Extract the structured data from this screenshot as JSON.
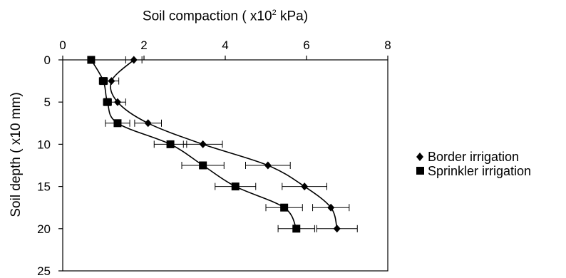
{
  "chart_data": {
    "type": "scatter",
    "xlabel_prefix": "Soil compaction ( x10",
    "xlabel_sup": "2",
    "xlabel_suffix": " kPa)",
    "ylabel": "Soil depth ( x10 mm)",
    "xlim": [
      0,
      8
    ],
    "ylim": [
      0,
      25
    ],
    "y_inverted": true,
    "x_axis_position": "top",
    "xticks": [
      "0",
      "2",
      "4",
      "6",
      "8"
    ],
    "yticks": [
      "0",
      "5",
      "10",
      "15",
      "20",
      "25"
    ],
    "grid": false,
    "legend_position": "right",
    "series": [
      {
        "name": "Border irrigation",
        "marker": "diamond",
        "color": "#000000",
        "points": [
          {
            "x": 1.75,
            "y": 0,
            "err": 0.2
          },
          {
            "x": 1.2,
            "y": 2.5,
            "err": 0.18
          },
          {
            "x": 1.35,
            "y": 5,
            "err": 0.2
          },
          {
            "x": 2.1,
            "y": 7.5,
            "err": 0.33
          },
          {
            "x": 3.45,
            "y": 10,
            "err": 0.48
          },
          {
            "x": 5.05,
            "y": 12.5,
            "err": 0.55
          },
          {
            "x": 5.95,
            "y": 15,
            "err": 0.55
          },
          {
            "x": 6.6,
            "y": 17.5,
            "err": 0.45
          },
          {
            "x": 6.75,
            "y": 20,
            "err": 0.5
          }
        ]
      },
      {
        "name": "Sprinkler irrigation",
        "marker": "square",
        "color": "#000000",
        "points": [
          {
            "x": 0.7,
            "y": 0,
            "err": 0
          },
          {
            "x": 1.0,
            "y": 2.5,
            "err": 0.1
          },
          {
            "x": 1.1,
            "y": 5,
            "err": 0.1
          },
          {
            "x": 1.35,
            "y": 7.5,
            "err": 0.3
          },
          {
            "x": 2.65,
            "y": 10,
            "err": 0.4
          },
          {
            "x": 3.45,
            "y": 12.5,
            "err": 0.52
          },
          {
            "x": 4.25,
            "y": 15,
            "err": 0.5
          },
          {
            "x": 5.45,
            "y": 17.5,
            "err": 0.45
          },
          {
            "x": 5.75,
            "y": 20,
            "err": 0.45
          }
        ]
      }
    ]
  }
}
